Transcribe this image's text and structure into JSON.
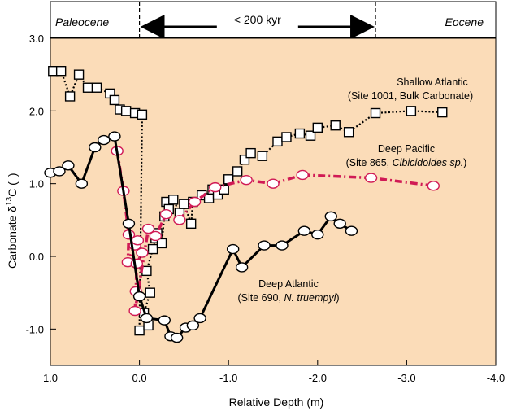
{
  "chart_data": {
    "type": "line",
    "x_axis": {
      "label": "Relative Depth (m)",
      "range": [
        1.0,
        -4.0
      ],
      "reversed": true,
      "ticks": [
        1.0,
        0.0,
        -1.0,
        -2.0,
        -3.0,
        -4.0
      ],
      "tick_labels": [
        "1.0",
        "0.0",
        "-1.0",
        "-2.0",
        "-3.0",
        "-4.0"
      ]
    },
    "y_axis": {
      "label_main": "Carbonate δ",
      "label_super": "13",
      "label_end": "C (",
      "label_close": ")",
      "range": [
        -1.5,
        3.0
      ],
      "ticks": [
        -1.0,
        0.0,
        1.0,
        2.0,
        3.0
      ],
      "tick_labels": [
        "-1.0",
        "0.0",
        "1.0",
        "2.0",
        "3.0"
      ]
    },
    "header": {
      "left_epoch": "Paleocene",
      "right_epoch": "Eocene",
      "duration": "< 200 kyr",
      "span": [
        0.0,
        -2.65
      ]
    },
    "background_color": "#fbdcb8",
    "series": [
      {
        "name": "Shallow Atlantic",
        "site_line": "(Site 1001, Bulk Carbonate)",
        "marker": "square",
        "line_style": "dotted",
        "color": "#000000",
        "points": [
          [
            0.97,
            2.55
          ],
          [
            0.88,
            2.55
          ],
          [
            0.78,
            2.2
          ],
          [
            0.68,
            2.5
          ],
          [
            0.58,
            2.32
          ],
          [
            0.48,
            2.32
          ],
          [
            0.33,
            2.24
          ],
          [
            0.28,
            2.15
          ],
          [
            0.22,
            2.02
          ],
          [
            0.15,
            2.0
          ],
          [
            0.05,
            1.97
          ],
          [
            -0.03,
            1.95
          ],
          [
            0.0,
            -1.02
          ],
          [
            -0.1,
            -0.95
          ],
          [
            -0.05,
            -0.78
          ],
          [
            -0.12,
            -0.5
          ],
          [
            -0.08,
            -0.2
          ],
          [
            -0.15,
            0.1
          ],
          [
            -0.18,
            0.25
          ],
          [
            -0.2,
            0.32
          ],
          [
            -0.25,
            0.18
          ],
          [
            -0.28,
            0.55
          ],
          [
            -0.3,
            0.75
          ],
          [
            -0.33,
            0.65
          ],
          [
            -0.38,
            0.78
          ],
          [
            -0.45,
            0.6
          ],
          [
            -0.5,
            0.72
          ],
          [
            -0.58,
            0.45
          ],
          [
            -0.6,
            0.75
          ],
          [
            -0.7,
            0.84
          ],
          [
            -0.78,
            0.8
          ],
          [
            -0.82,
            0.92
          ],
          [
            -0.88,
            0.85
          ],
          [
            -0.95,
            0.92
          ],
          [
            -1.0,
            1.06
          ],
          [
            -1.1,
            1.17
          ],
          [
            -1.18,
            1.33
          ],
          [
            -1.25,
            1.42
          ],
          [
            -1.38,
            1.38
          ],
          [
            -1.55,
            1.58
          ],
          [
            -1.65,
            1.64
          ],
          [
            -1.8,
            1.69
          ],
          [
            -1.92,
            1.66
          ],
          [
            -2.0,
            1.77
          ],
          [
            -2.2,
            1.8
          ],
          [
            -2.35,
            1.71
          ],
          [
            -2.65,
            1.97
          ],
          [
            -3.05,
            2.0
          ],
          [
            -3.4,
            1.98
          ]
        ]
      },
      {
        "name": "Deep Pacific",
        "site_line_prefix": "(Site 865, ",
        "site_line_italic": "Cibicidoides sp.",
        "site_line_suffix": ")",
        "marker": "ellipse",
        "line_style": "dash-dot",
        "color": "#d01a55",
        "points": [
          [
            0.25,
            1.45
          ],
          [
            0.18,
            0.9
          ],
          [
            0.12,
            0.3
          ],
          [
            0.13,
            -0.08
          ],
          [
            0.05,
            0.15
          ],
          [
            0.02,
            0.22
          ],
          [
            -0.03,
            0.05
          ],
          [
            0.03,
            -0.1
          ],
          [
            0.04,
            -0.48
          ],
          [
            0.05,
            -0.75
          ],
          [
            -0.1,
            0.38
          ],
          [
            -0.18,
            0.28
          ],
          [
            -0.3,
            0.58
          ],
          [
            -0.45,
            0.5
          ],
          [
            -0.62,
            0.75
          ],
          [
            -0.85,
            0.95
          ],
          [
            -1.2,
            1.05
          ],
          [
            -1.5,
            1.0
          ],
          [
            -1.83,
            1.12
          ],
          [
            -2.6,
            1.08
          ],
          [
            -3.3,
            0.97
          ]
        ]
      },
      {
        "name": "Deep Atlantic",
        "site_line_prefix": "(Site 690, ",
        "site_line_italic": "N. truempyi",
        "site_line_suffix": ")",
        "marker": "ellipse",
        "line_style": "solid",
        "color": "#000000",
        "points": [
          [
            1.0,
            1.15
          ],
          [
            0.9,
            1.17
          ],
          [
            0.8,
            1.25
          ],
          [
            0.65,
            1.0
          ],
          [
            0.5,
            1.5
          ],
          [
            0.4,
            1.6
          ],
          [
            0.28,
            1.65
          ],
          [
            0.12,
            0.45
          ],
          [
            0.0,
            -0.55
          ],
          [
            -0.08,
            -0.85
          ],
          [
            -0.28,
            -0.88
          ],
          [
            -0.35,
            -1.1
          ],
          [
            -0.42,
            -1.12
          ],
          [
            -0.52,
            -0.98
          ],
          [
            -0.6,
            -0.95
          ],
          [
            -0.68,
            -0.85
          ],
          [
            -1.05,
            0.1
          ],
          [
            -1.15,
            -0.15
          ],
          [
            -1.4,
            0.15
          ],
          [
            -1.6,
            0.15
          ],
          [
            -1.85,
            0.35
          ],
          [
            -2.0,
            0.3
          ],
          [
            -2.15,
            0.55
          ],
          [
            -2.25,
            0.45
          ],
          [
            -2.38,
            0.35
          ]
        ]
      }
    ]
  }
}
